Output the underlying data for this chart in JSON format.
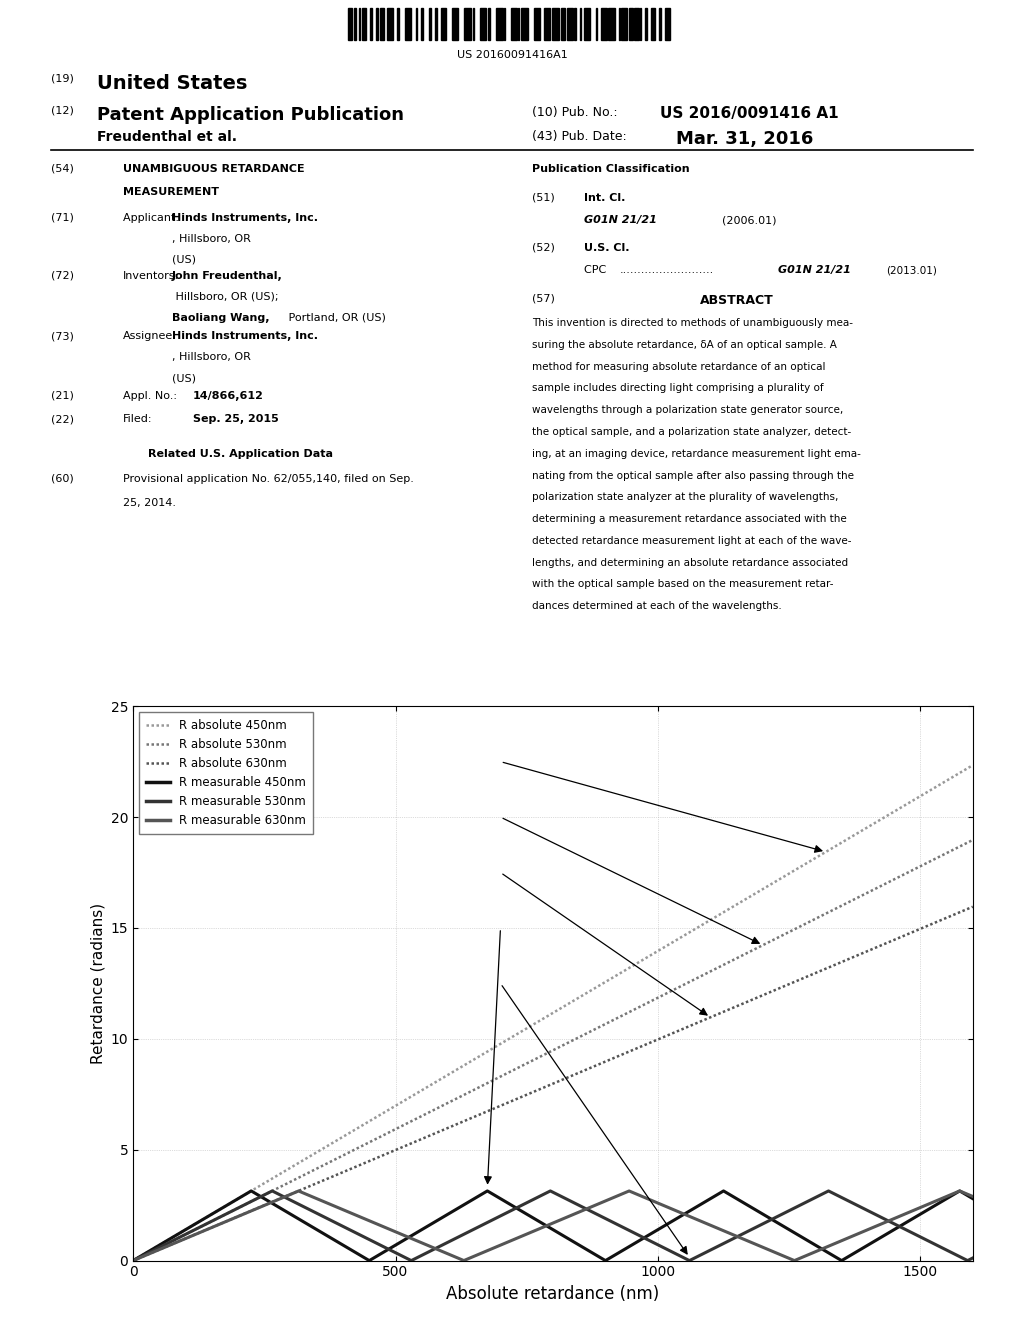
{
  "patent_number": "US 20160091416A1",
  "pub_no": "US 2016/0091416 A1",
  "pub_date": "Mar. 31, 2016",
  "inventors": "Freudenthal et al.",
  "appl_no": "14/866,612",
  "filed": "Sep. 25, 2015",
  "int_cl": "G01N 21/21",
  "int_cl_date": "(2006.01)",
  "cpc": "G01N 21/21",
  "cpc_date": "(2013.01)",
  "wavelengths": [
    450,
    530,
    630
  ],
  "x_max": 1600,
  "y_max": 25,
  "xlabel": "Absolute retardance (nm)",
  "ylabel": "Retardance (radians)",
  "legend_labels": [
    "R absolute 450nm",
    "R absolute 530nm",
    "R absolute 630nm",
    "R measurable 450nm",
    "R measurable 530nm",
    "R measurable 630nm"
  ],
  "abs_colors": [
    "#999999",
    "#777777",
    "#555555"
  ],
  "meas_colors": [
    "#111111",
    "#333333",
    "#555555"
  ],
  "bg_color": "#ffffff",
  "fig_width": 10.24,
  "fig_height": 13.2
}
